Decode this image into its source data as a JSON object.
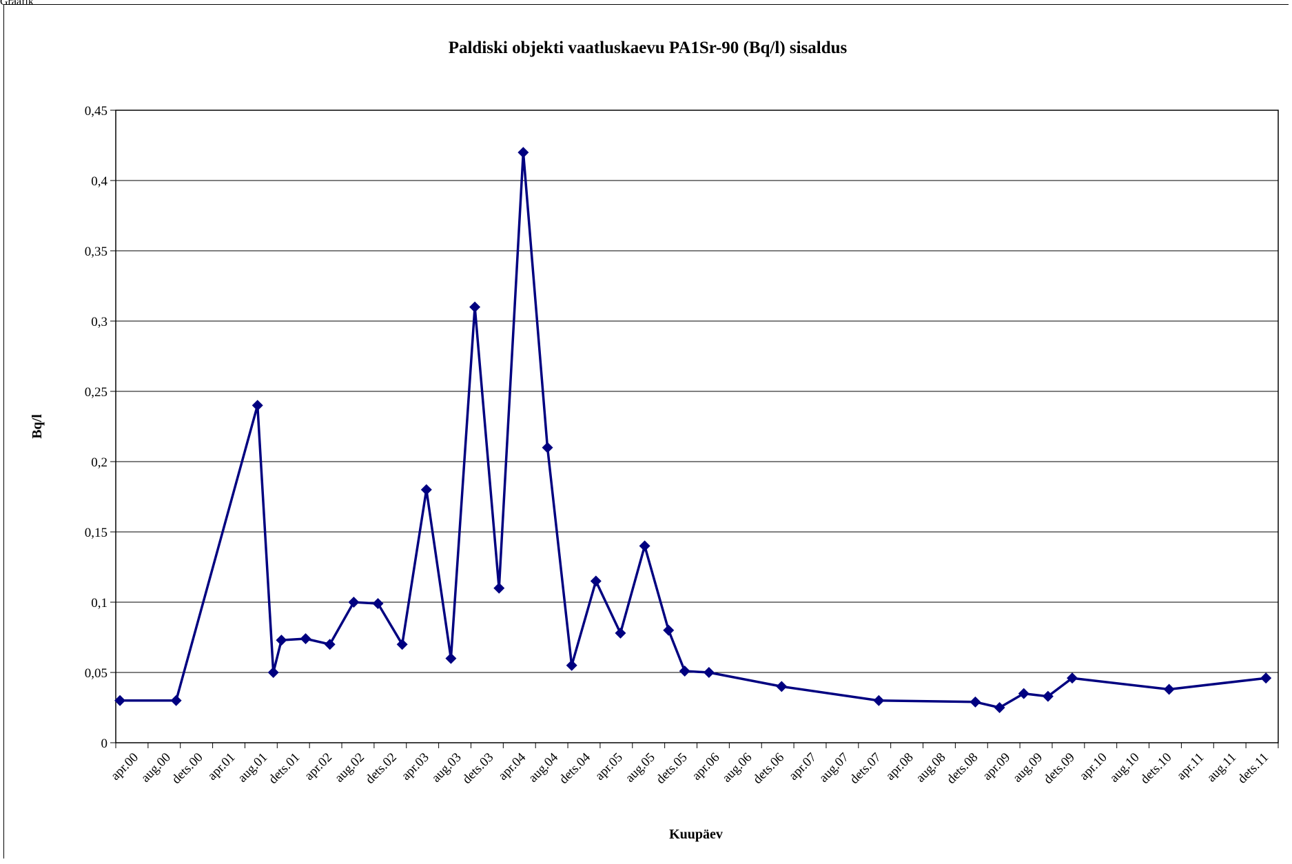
{
  "corner_label": "Graafik",
  "chart_data": {
    "type": "line",
    "title": "Paldiski objekti vaatluskaevu PA1Sr-90 (Bq/l) sisaldus",
    "xlabel": "Kuupäev",
    "ylabel": "Bq/l",
    "ylim": [
      0,
      0.45
    ],
    "yticks": [
      0,
      0.05,
      0.1,
      0.15,
      0.2,
      0.25,
      0.3,
      0.35,
      0.4,
      0.45
    ],
    "ytick_labels": [
      "0",
      "0,05",
      "0,1",
      "0,15",
      "0,2",
      "0,25",
      "0,3",
      "0,35",
      "0,4",
      "0,45"
    ],
    "x_categories": [
      "apr.00",
      "aug.00",
      "dets.00",
      "apr.01",
      "aug.01",
      "dets.01",
      "apr.02",
      "aug.02",
      "dets.02",
      "apr.03",
      "aug.03",
      "dets.03",
      "apr.04",
      "aug.04",
      "dets.04",
      "apr.05",
      "aug.05",
      "dets.05",
      "apr.06",
      "aug.06",
      "dets.06",
      "apr.07",
      "aug.07",
      "dets.07",
      "apr.08",
      "aug.08",
      "dets.08",
      "apr.09",
      "aug.09",
      "dets.09",
      "apr.10",
      "aug.10",
      "dets.10",
      "apr.11",
      "aug.11",
      "dets.11"
    ],
    "grid": "horizontal",
    "legend": "none",
    "line_color": "#000080",
    "series": [
      {
        "x": [
          0.13,
          1.87,
          4.39,
          4.88,
          5.13,
          5.88,
          6.63,
          7.37,
          8.12,
          8.87,
          9.62,
          10.38,
          11.12,
          11.87,
          12.62,
          13.37,
          14.12,
          14.87,
          15.63,
          16.38,
          17.12,
          17.62,
          18.37,
          20.62,
          23.63,
          26.62,
          27.37,
          28.12,
          28.87,
          29.62,
          32.62,
          35.62
        ],
        "values": [
          0.03,
          0.03,
          0.24,
          0.05,
          0.073,
          0.074,
          0.07,
          0.1,
          0.099,
          0.07,
          0.18,
          0.06,
          0.31,
          0.11,
          0.42,
          0.21,
          0.055,
          0.115,
          0.078,
          0.14,
          0.08,
          0.051,
          0.05,
          0.04,
          0.03,
          0.029,
          0.025,
          0.035,
          0.033,
          0.046,
          0.038,
          0.046
        ]
      }
    ]
  }
}
